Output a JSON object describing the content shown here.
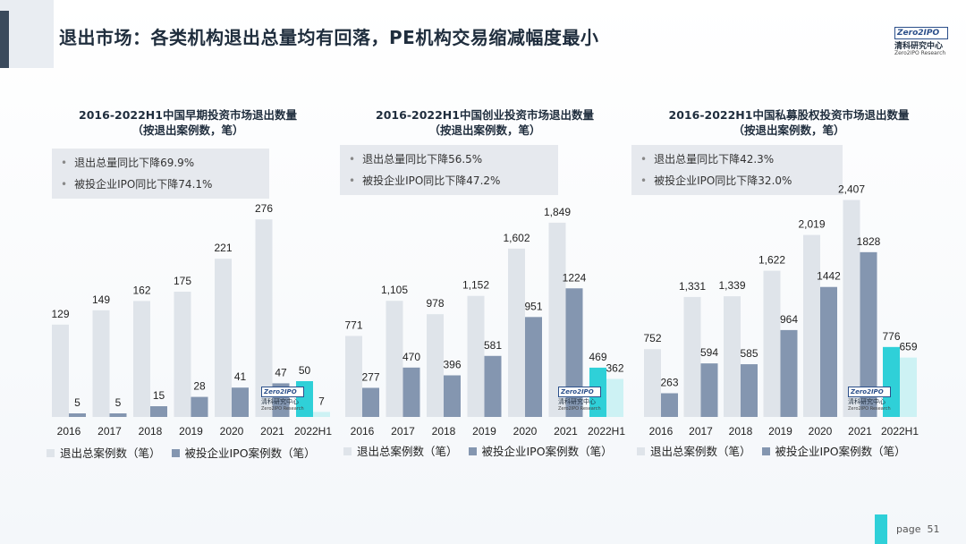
{
  "page": {
    "title": "退出市场：各类机构退出总量均有回落，PE机构交易缩减幅度最小",
    "page_label": "page",
    "page_number": "51"
  },
  "logo": {
    "box_text": "Zero2IPO",
    "cn": "清科研究中心",
    "en": "Zero2IPO Research"
  },
  "colors": {
    "total_bar": "#dfe4ea",
    "ipo_bar": "#8496b0",
    "highlight_total": "#2fd0d8",
    "highlight_ipo": "#cdf2f4",
    "text": "#222222"
  },
  "legend": {
    "total": "退出总案例数（笔）",
    "ipo": "被投企业IPO案例数（笔）"
  },
  "chart_data": [
    {
      "type": "bar",
      "title_line1": "2016-2022H1中国早期投资市场退出数量",
      "title_line2": "（按退出案例数，笔）",
      "categories": [
        "2016",
        "2017",
        "2018",
        "2019",
        "2020",
        "2021",
        "2022H1"
      ],
      "series": [
        {
          "name": "退出总案例数（笔）",
          "values": [
            129,
            149,
            162,
            175,
            221,
            276,
            50
          ]
        },
        {
          "name": "被投企业IPO案例数（笔）",
          "values": [
            5,
            5,
            15,
            28,
            41,
            47,
            7
          ]
        }
      ],
      "ylim": [
        0,
        320
      ],
      "stats": [
        "退出总量同比下降69.9%",
        "被投企业IPO同比下降74.1%"
      ],
      "value_labels_total": [
        "129",
        "149",
        "162",
        "175",
        "221",
        "276",
        "50"
      ],
      "value_labels_ipo": [
        "5",
        "5",
        "15",
        "28",
        "41",
        "47",
        "7"
      ]
    },
    {
      "type": "bar",
      "title_line1": "2016-2022H1中国创业投资市场退出数量",
      "title_line2": "（按退出案例数，笔）",
      "categories": [
        "2016",
        "2017",
        "2018",
        "2019",
        "2020",
        "2021",
        "2022H1"
      ],
      "series": [
        {
          "name": "退出总案例数（笔）",
          "values": [
            771,
            1105,
            978,
            1152,
            1602,
            1849,
            469
          ]
        },
        {
          "name": "被投企业IPO案例数（笔）",
          "values": [
            277,
            470,
            396,
            581,
            951,
            1224,
            362
          ]
        }
      ],
      "ylim": [
        0,
        2180
      ],
      "stats": [
        "退出总量同比下降56.5%",
        "被投企业IPO同比下降47.2%"
      ],
      "value_labels_total": [
        "771",
        "1,105",
        "978",
        "1,152",
        "1,602",
        "1,849",
        "469"
      ],
      "value_labels_ipo": [
        "277",
        "470",
        "396",
        "581",
        "951",
        "1224",
        "362"
      ]
    },
    {
      "type": "bar",
      "title_line1": "2016-2022H1中国私募股权投资市场退出数量",
      "title_line2": "（按退出案例数，笔）",
      "categories": [
        "2016",
        "2017",
        "2018",
        "2019",
        "2020",
        "2021",
        "2022H1"
      ],
      "series": [
        {
          "name": "退出总案例数（笔）",
          "values": [
            752,
            1331,
            1339,
            1622,
            2019,
            2407,
            776
          ]
        },
        {
          "name": "被投企业IPO案例数（笔）",
          "values": [
            263,
            594,
            585,
            964,
            1442,
            1828,
            659
          ]
        }
      ],
      "ylim": [
        0,
        2700
      ],
      "stats": [
        "退出总量同比下降42.3%",
        "被投企业IPO同比下降32.0%"
      ],
      "value_labels_total": [
        "752",
        "1,331",
        "1,339",
        "1,622",
        "2,019",
        "2,407",
        "776"
      ],
      "value_labels_ipo": [
        "263",
        "594",
        "585",
        "964",
        "1442",
        "1828",
        "659"
      ]
    }
  ]
}
